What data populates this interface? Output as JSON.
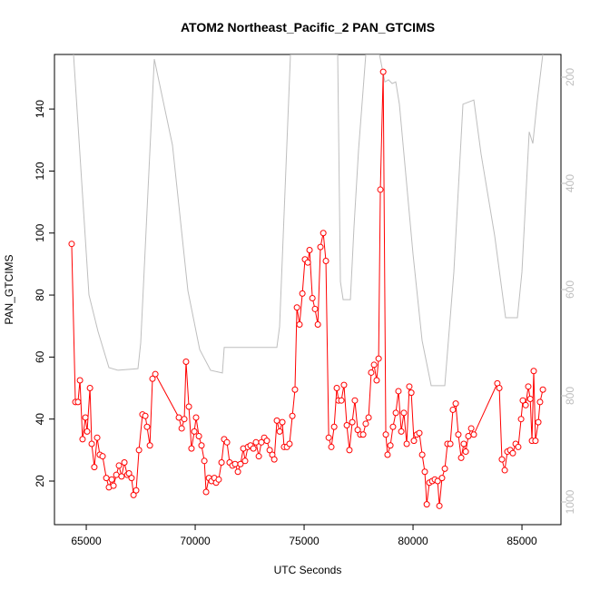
{
  "chart_data": {
    "type": "line",
    "title": "ATOM2 Northeast_Pacific_2 PAN_GTCIMS",
    "xlabel": "UTC Seconds",
    "ylabel": "PAN_GTCIMS",
    "xlim": [
      63540,
      86790
    ],
    "xticks": [
      65000,
      70000,
      75000,
      80000,
      85000
    ],
    "ylim": [
      5.95,
      157.6
    ],
    "yticks": [
      20,
      40,
      60,
      80,
      100,
      120,
      140
    ],
    "y2lim": [
      1042.7,
      157.3
    ],
    "y2ticks": [
      200,
      400,
      600,
      800,
      1000
    ],
    "series": [
      {
        "color": "#ff0000",
        "markers": true,
        "x": [
          64330,
          64500,
          64620,
          64710,
          64830,
          64960,
          65040,
          65170,
          65250,
          65370,
          65500,
          65620,
          65750,
          65920,
          66040,
          66170,
          66250,
          66380,
          66500,
          66620,
          66750,
          66880,
          66960,
          67080,
          67170,
          67290,
          67420,
          67580,
          67710,
          67790,
          67920,
          68040,
          68170,
          69250,
          69380,
          69500,
          69580,
          69710,
          69830,
          69960,
          70040,
          70170,
          70290,
          70420,
          70500,
          70630,
          70750,
          70880,
          70960,
          71080,
          71210,
          71330,
          71460,
          71580,
          71710,
          71830,
          71960,
          72080,
          72210,
          72290,
          72420,
          72540,
          72670,
          72790,
          72920,
          73040,
          73170,
          73290,
          73420,
          73540,
          73630,
          73750,
          73880,
          74000,
          74080,
          74210,
          74330,
          74460,
          74580,
          74670,
          74790,
          74920,
          75040,
          75170,
          75250,
          75380,
          75500,
          75630,
          75750,
          75880,
          76000,
          76130,
          76250,
          76380,
          76500,
          76580,
          76710,
          76830,
          76960,
          77080,
          77210,
          77330,
          77460,
          77580,
          77710,
          77830,
          77960,
          78080,
          78210,
          78330,
          78420,
          78500,
          78630,
          78750,
          78830,
          78960,
          79080,
          79210,
          79330,
          79460,
          79580,
          79710,
          79830,
          79920,
          80040,
          80170,
          80290,
          80420,
          80540,
          80630,
          80750,
          80880,
          81000,
          81130,
          81210,
          81330,
          81460,
          81580,
          81710,
          81830,
          81960,
          82080,
          82210,
          82330,
          82420,
          82540,
          82670,
          82790,
          83870,
          83960,
          84080,
          84210,
          84330,
          84460,
          84580,
          84710,
          84830,
          84960,
          85040,
          85170,
          85290,
          85380,
          85460,
          85540,
          85620,
          85750,
          85830,
          85960
        ],
        "values": [
          96.5,
          45.5,
          45.5,
          52.5,
          33.5,
          40.5,
          36,
          50,
          32,
          24.5,
          34,
          28.5,
          28,
          21,
          18,
          20.5,
          18.5,
          22,
          25,
          21.5,
          26,
          22,
          22.5,
          21,
          15.5,
          17,
          30,
          41.5,
          41,
          37.5,
          31.5,
          53,
          54.5,
          40.5,
          37,
          40,
          58.5,
          44,
          30.5,
          36,
          40.5,
          34.5,
          31.5,
          26.5,
          16.5,
          21,
          20,
          21,
          19.5,
          20.5,
          26,
          33.5,
          32.5,
          26,
          25,
          25.5,
          23,
          25.5,
          30.5,
          26.5,
          31,
          31.5,
          30.5,
          32.5,
          28,
          32.5,
          34,
          33,
          30,
          28.5,
          27,
          39.5,
          36,
          39,
          31,
          31,
          32,
          41,
          49.5,
          76,
          70.5,
          80.5,
          91.5,
          90.5,
          94.5,
          79,
          75.5,
          70.5,
          95.5,
          100,
          91,
          34,
          31,
          37.5,
          50,
          46,
          46,
          51,
          38,
          30,
          39,
          46,
          36.5,
          35,
          35,
          38.5,
          40.5,
          55,
          57.5,
          52.5,
          59.5,
          114,
          152,
          35,
          28.5,
          31.5,
          37.5,
          42,
          49,
          36,
          42,
          32,
          50.5,
          48.5,
          33,
          35,
          35.5,
          28.5,
          23,
          12.5,
          19.5,
          20,
          20.5,
          20,
          12,
          21,
          24,
          32,
          32,
          43,
          45,
          35,
          27.5,
          32,
          29.5,
          34.5,
          37,
          35,
          51.5,
          50,
          27,
          23.5,
          29.5,
          30,
          29,
          32,
          31,
          40,
          46,
          44.5,
          50.5,
          46.5,
          33,
          55.5,
          33,
          39,
          45.5,
          49.5
        ]
      },
      {
        "color": "#bebebe",
        "axis": "y2",
        "markers": false,
        "x": [
          64415,
          65123,
          65540,
          66040,
          66457,
          67373,
          67498,
          68123,
          68957,
          69665,
          70207,
          70707,
          71249,
          71332,
          73749,
          73874,
          74374,
          76541,
          76666,
          76791,
          77124,
          77290,
          77499,
          77832,
          78457,
          78707,
          78874,
          79040,
          79207,
          79374,
          79999,
          80416,
          80833,
          81458,
          81874,
          82291,
          82791,
          83124,
          83749,
          84083,
          84249,
          84791,
          84999,
          85332,
          85499,
          85707,
          85957
        ],
        "values": [
          157,
          610,
          679,
          747,
          752,
          749,
          701,
          166,
          328,
          602,
          713,
          752,
          757,
          709,
          709,
          670,
          157,
          157,
          585,
          619,
          619,
          482,
          337,
          157,
          157,
          209,
          205,
          212,
          209,
          251,
          533,
          696,
          781,
          781,
          567,
          251,
          243,
          345,
          499,
          602,
          653,
          653,
          567,
          303,
          325,
          243,
          157
        ]
      }
    ]
  }
}
